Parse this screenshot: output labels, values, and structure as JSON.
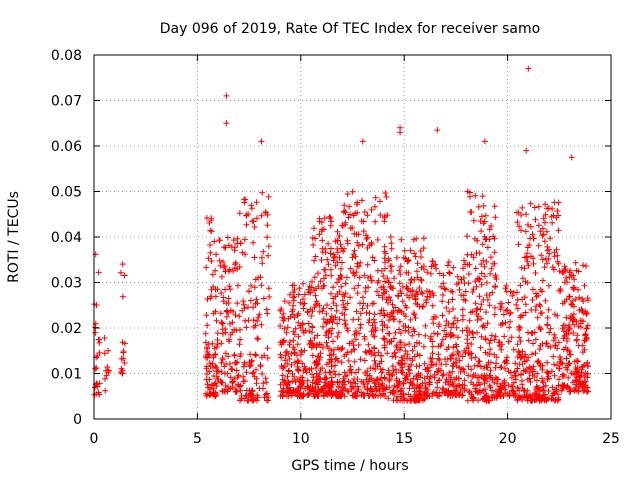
{
  "chart_data": {
    "type": "scatter",
    "title": "Day 096 of 2019, Rate Of TEC Index for receiver samo",
    "xlabel": "GPS time / hours",
    "ylabel": "ROTI / TECUs",
    "xlim": [
      0,
      25
    ],
    "ylim": [
      0,
      0.08
    ],
    "x_ticks": [
      "0",
      "5",
      "10",
      "15",
      "20",
      "25"
    ],
    "y_ticks": [
      "0",
      "0.01",
      "0.02",
      "0.03",
      "0.04",
      "0.05",
      "0.06",
      "0.07",
      "0.08"
    ],
    "grid": true,
    "marker": "+",
    "series_color": "#ff0000",
    "highlight_points": [
      {
        "x": 6.4,
        "y": 0.071
      },
      {
        "x": 6.4,
        "y": 0.065
      },
      {
        "x": 8.1,
        "y": 0.061
      },
      {
        "x": 14.8,
        "y": 0.064
      },
      {
        "x": 14.8,
        "y": 0.063
      },
      {
        "x": 16.6,
        "y": 0.0635
      },
      {
        "x": 21.0,
        "y": 0.077
      },
      {
        "x": 18.9,
        "y": 0.061
      },
      {
        "x": 13.0,
        "y": 0.061
      },
      {
        "x": 20.9,
        "y": 0.059
      },
      {
        "x": 23.1,
        "y": 0.0575
      }
    ],
    "clusters": [
      {
        "x_range": [
          0.0,
          0.3
        ],
        "y_range": [
          0.005,
          0.037
        ],
        "count": 25
      },
      {
        "x_range": [
          0.5,
          0.8
        ],
        "y_range": [
          0.006,
          0.023
        ],
        "count": 10
      },
      {
        "x_range": [
          1.3,
          1.5
        ],
        "y_range": [
          0.01,
          0.035
        ],
        "count": 15
      },
      {
        "x_range": [
          5.4,
          6.0
        ],
        "y_range": [
          0.005,
          0.045
        ],
        "count": 90
      },
      {
        "x_range": [
          6.0,
          7.0
        ],
        "y_range": [
          0.006,
          0.04
        ],
        "count": 110
      },
      {
        "x_range": [
          7.0,
          8.5
        ],
        "y_range": [
          0.004,
          0.05
        ],
        "count": 150
      },
      {
        "x_range": [
          9.0,
          10.5
        ],
        "y_range": [
          0.005,
          0.03
        ],
        "count": 200
      },
      {
        "x_range": [
          10.5,
          12.0
        ],
        "y_range": [
          0.005,
          0.045
        ],
        "count": 280
      },
      {
        "x_range": [
          12.0,
          14.2
        ],
        "y_range": [
          0.005,
          0.05
        ],
        "count": 320
      },
      {
        "x_range": [
          14.2,
          16.0
        ],
        "y_range": [
          0.004,
          0.04
        ],
        "count": 280
      },
      {
        "x_range": [
          16.0,
          18.0
        ],
        "y_range": [
          0.005,
          0.035
        ],
        "count": 240
      },
      {
        "x_range": [
          18.0,
          19.5
        ],
        "y_range": [
          0.004,
          0.05
        ],
        "count": 220
      },
      {
        "x_range": [
          19.5,
          20.4
        ],
        "y_range": [
          0.005,
          0.03
        ],
        "count": 90
      },
      {
        "x_range": [
          20.4,
          22.5
        ],
        "y_range": [
          0.004,
          0.048
        ],
        "count": 300
      },
      {
        "x_range": [
          22.5,
          23.9
        ],
        "y_range": [
          0.006,
          0.035
        ],
        "count": 200
      }
    ]
  }
}
